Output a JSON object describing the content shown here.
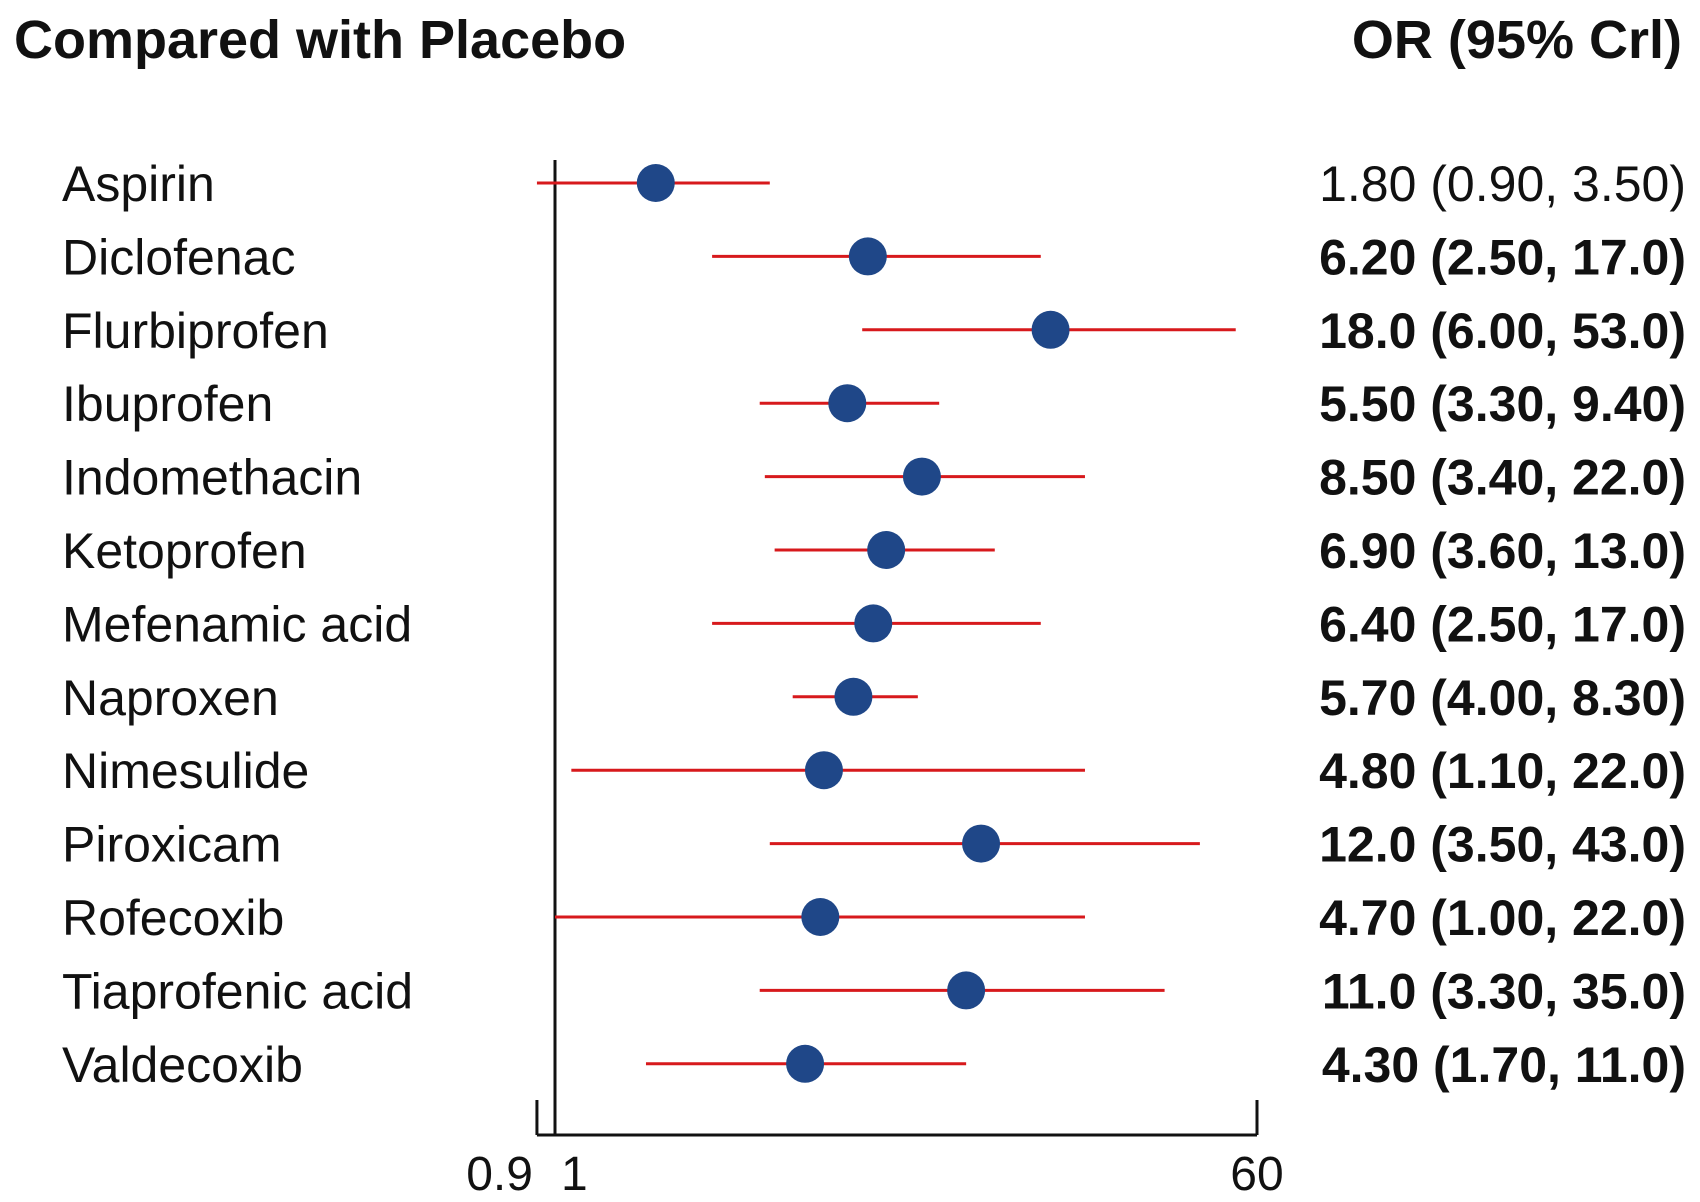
{
  "header": {
    "left_title": "Compared with Placebo",
    "right_title": "OR (95% Crl)"
  },
  "chart_data": {
    "type": "forest",
    "x_scale": "log",
    "xlim": [
      0.9,
      60
    ],
    "reference_line": 1,
    "x_ticks": [
      {
        "value": 0.9,
        "label": "0.9"
      },
      {
        "value": 1,
        "label": "1"
      },
      {
        "value": 60,
        "label": "60"
      }
    ],
    "colors": {
      "point": "#1f4788",
      "interval": "#d7191c",
      "axis": "#111111"
    },
    "rows": [
      {
        "name": "Aspirin",
        "or": 1.8,
        "lo": 0.9,
        "hi": 3.5,
        "text": "1.80 (0.90, 3.50)",
        "bold": false
      },
      {
        "name": "Diclofenac",
        "or": 6.2,
        "lo": 2.5,
        "hi": 17.0,
        "text": "6.20 (2.50, 17.0)",
        "bold": true
      },
      {
        "name": "Flurbiprofen",
        "or": 18.0,
        "lo": 6.0,
        "hi": 53.0,
        "text": "18.0 (6.00, 53.0)",
        "bold": true
      },
      {
        "name": "Ibuprofen",
        "or": 5.5,
        "lo": 3.3,
        "hi": 9.4,
        "text": "5.50 (3.30, 9.40)",
        "bold": true
      },
      {
        "name": "Indomethacin",
        "or": 8.5,
        "lo": 3.4,
        "hi": 22.0,
        "text": "8.50 (3.40, 22.0)",
        "bold": true
      },
      {
        "name": "Ketoprofen",
        "or": 6.9,
        "lo": 3.6,
        "hi": 13.0,
        "text": "6.90 (3.60, 13.0)",
        "bold": true
      },
      {
        "name": "Mefenamic acid",
        "or": 6.4,
        "lo": 2.5,
        "hi": 17.0,
        "text": "6.40 (2.50, 17.0)",
        "bold": true
      },
      {
        "name": "Naproxen",
        "or": 5.7,
        "lo": 4.0,
        "hi": 8.3,
        "text": "5.70 (4.00, 8.30)",
        "bold": true
      },
      {
        "name": "Nimesulide",
        "or": 4.8,
        "lo": 1.1,
        "hi": 22.0,
        "text": "4.80 (1.10, 22.0)",
        "bold": true
      },
      {
        "name": "Piroxicam",
        "or": 12.0,
        "lo": 3.5,
        "hi": 43.0,
        "text": "12.0 (3.50, 43.0)",
        "bold": true
      },
      {
        "name": "Rofecoxib",
        "or": 4.7,
        "lo": 1.0,
        "hi": 22.0,
        "text": "4.70 (1.00, 22.0)",
        "bold": true
      },
      {
        "name": "Tiaprofenic acid",
        "or": 11.0,
        "lo": 3.3,
        "hi": 35.0,
        "text": "11.0 (3.30, 35.0)",
        "bold": true
      },
      {
        "name": "Valdecoxib",
        "or": 4.3,
        "lo": 1.7,
        "hi": 11.0,
        "text": "4.30 (1.70, 11.0)",
        "bold": true
      }
    ]
  }
}
